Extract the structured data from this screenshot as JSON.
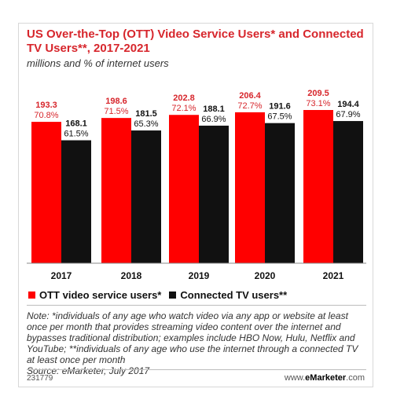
{
  "header": {
    "title": "US Over-the-Top (OTT) Video Service Users* and Connected TV Users**, 2017-2021",
    "subtitle": "millions and % of internet users"
  },
  "colors": {
    "ott": "#ff0000",
    "ctv": "#111111",
    "title": "#d7262c"
  },
  "chart_data": {
    "type": "bar",
    "title": "US Over-the-Top (OTT) Video Service Users* and Connected TV Users**, 2017-2021",
    "subtitle": "millions and % of internet users",
    "xlabel": "",
    "ylabel": "",
    "categories": [
      "2017",
      "2018",
      "2019",
      "2020",
      "2021"
    ],
    "series": [
      {
        "name": "OTT video service users*",
        "values": [
          193.3,
          198.6,
          202.8,
          206.4,
          209.5
        ],
        "value_labels": [
          "193.3",
          "198.6",
          "202.8",
          "206.4",
          "209.5"
        ],
        "pct_labels": [
          "70.8%",
          "71.5%",
          "72.1%",
          "72.7%",
          "73.1%"
        ],
        "color": "#ff0000"
      },
      {
        "name": "Connected TV users**",
        "values": [
          168.1,
          181.5,
          188.1,
          191.6,
          194.4
        ],
        "value_labels": [
          "168.1",
          "181.5",
          "188.1",
          "191.6",
          "194.4"
        ],
        "pct_labels": [
          "61.5%",
          "65.3%",
          "66.9%",
          "67.5%",
          "67.9%"
        ],
        "color": "#111111"
      }
    ],
    "ylim": [
      0,
      209.5
    ],
    "grid": false,
    "legend": "bottom-left"
  },
  "legend": {
    "ott_label": "OTT video service users*",
    "ctv_label": "Connected TV users**"
  },
  "note": "Note: *individuals of any age who watch video via any app or website at least once per month that provides streaming video content over the internet and bypasses traditional distribution; examples include HBO Now, Hulu, Netflix and YouTube; **individuals of any age who use the internet through a connected TV at least once per month",
  "source": "Source: eMarketer, July 2017",
  "footer": {
    "chart_id": "231779",
    "site_prefix": "www.",
    "site_brand": "eMarketer",
    "site_suffix": ".com"
  }
}
